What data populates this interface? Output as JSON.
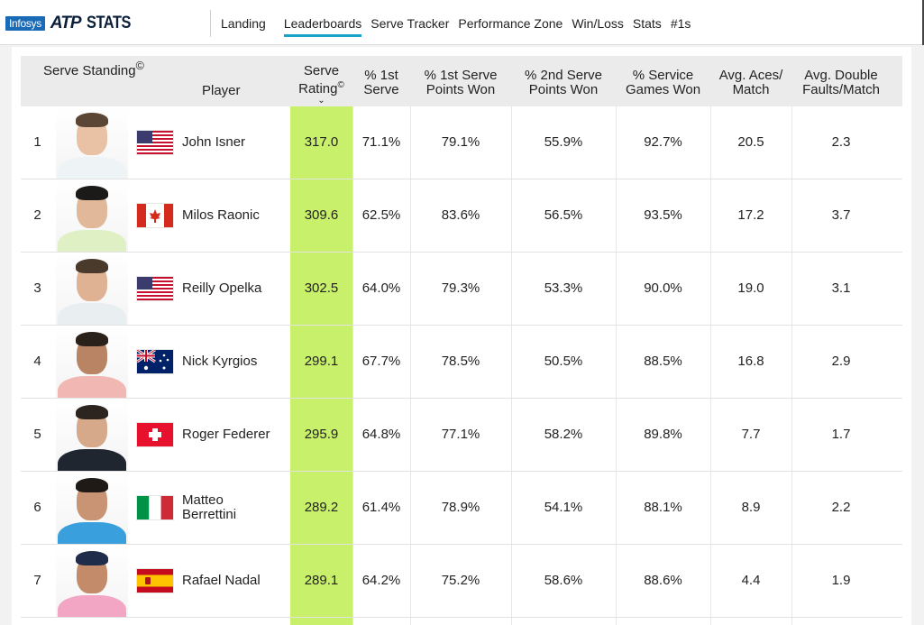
{
  "header": {
    "logo": {
      "brand": "Infosys",
      "atp": "ATP",
      "stats": "STATS"
    },
    "nav": [
      {
        "label": "Landing",
        "active": false
      },
      {
        "label": "Leaderboards",
        "active": true
      },
      {
        "label": "Serve Tracker",
        "active": false
      },
      {
        "label": "Performance Zone",
        "active": false
      },
      {
        "label": "Win/Loss",
        "active": false
      },
      {
        "label": "Stats",
        "active": false
      },
      {
        "label": "#1s",
        "active": false
      }
    ]
  },
  "table": {
    "headers": {
      "standing": "Serve Standing",
      "standing_mark": "©",
      "player": "Player",
      "serve_rating_line1": "Serve",
      "serve_rating_line2": "Rating",
      "serve_rating_mark": "©",
      "first_serve_line1": "% 1st",
      "first_serve_line2": "Serve",
      "first_won_line1": "% 1st Serve",
      "first_won_line2": "Points Won",
      "second_won_line1": "% 2nd Serve",
      "second_won_line2": "Points Won",
      "service_games_line1": "% Service",
      "service_games_line2": "Games Won",
      "aces_line1": "Avg. Aces/",
      "aces_line2": "Match",
      "df_line1": "Avg. Double",
      "df_line2": "Faults/Match"
    },
    "sort_icon": "chevron-down-icon",
    "highlight_color": "#c9f06a",
    "rows": [
      {
        "rank": "1",
        "name_line1": "John Isner",
        "name_line2": "",
        "flag": "usa",
        "rating": "317.0",
        "first_serve": "71.1%",
        "first_won": "79.1%",
        "second_won": "55.9%",
        "service_games": "92.7%",
        "aces": "20.5",
        "df": "2.3"
      },
      {
        "rank": "2",
        "name_line1": "Milos Raonic",
        "name_line2": "",
        "flag": "canada",
        "rating": "309.6",
        "first_serve": "62.5%",
        "first_won": "83.6%",
        "second_won": "56.5%",
        "service_games": "93.5%",
        "aces": "17.2",
        "df": "3.7"
      },
      {
        "rank": "3",
        "name_line1": "Reilly Opelka",
        "name_line2": "",
        "flag": "usa",
        "rating": "302.5",
        "first_serve": "64.0%",
        "first_won": "79.3%",
        "second_won": "53.3%",
        "service_games": "90.0%",
        "aces": "19.0",
        "df": "3.1"
      },
      {
        "rank": "4",
        "name_line1": "Nick Kyrgios",
        "name_line2": "",
        "flag": "australia",
        "rating": "299.1",
        "first_serve": "67.7%",
        "first_won": "78.5%",
        "second_won": "50.5%",
        "service_games": "88.5%",
        "aces": "16.8",
        "df": "2.9"
      },
      {
        "rank": "5",
        "name_line1": "Roger Federer",
        "name_line2": "",
        "flag": "switzerland",
        "rating": "295.9",
        "first_serve": "64.8%",
        "first_won": "77.1%",
        "second_won": "58.2%",
        "service_games": "89.8%",
        "aces": "7.7",
        "df": "1.7"
      },
      {
        "rank": "6",
        "name_line1": "Matteo",
        "name_line2": "Berrettini",
        "flag": "italy",
        "rating": "289.2",
        "first_serve": "61.4%",
        "first_won": "78.9%",
        "second_won": "54.1%",
        "service_games": "88.1%",
        "aces": "8.9",
        "df": "2.2"
      },
      {
        "rank": "7",
        "name_line1": "Rafael Nadal",
        "name_line2": "",
        "flag": "spain",
        "rating": "289.1",
        "first_serve": "64.2%",
        "first_won": "75.2%",
        "second_won": "58.6%",
        "service_games": "88.6%",
        "aces": "4.4",
        "df": "1.9"
      }
    ]
  }
}
